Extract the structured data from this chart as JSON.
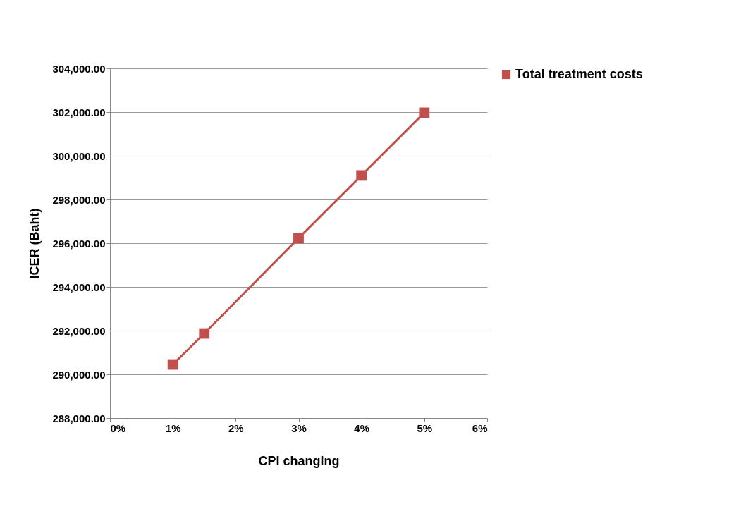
{
  "chart_data": {
    "type": "line",
    "xlabel": "CPI changing",
    "ylabel": "ICER (Baht)",
    "x": [
      1,
      1.5,
      3,
      4,
      5
    ],
    "series": [
      {
        "name": "Total treatment costs",
        "color": "#c0504d",
        "values": [
          290450,
          291870,
          296230,
          299100,
          301970
        ]
      }
    ],
    "xlim": [
      0,
      6
    ],
    "xticks": [
      {
        "value": 0,
        "label": "0%"
      },
      {
        "value": 1,
        "label": "1%"
      },
      {
        "value": 2,
        "label": "2%"
      },
      {
        "value": 3,
        "label": "3%"
      },
      {
        "value": 4,
        "label": "4%"
      },
      {
        "value": 5,
        "label": "5%"
      },
      {
        "value": 6,
        "label": "6%"
      }
    ],
    "ylim": [
      288000,
      304000
    ],
    "yticks": [
      {
        "value": 288000,
        "label": "288,000.00"
      },
      {
        "value": 290000,
        "label": "290,000.00"
      },
      {
        "value": 292000,
        "label": "292,000.00"
      },
      {
        "value": 294000,
        "label": "294,000.00"
      },
      {
        "value": 296000,
        "label": "296,000.00"
      },
      {
        "value": 298000,
        "label": "298,000.00"
      },
      {
        "value": 300000,
        "label": "300,000.00"
      },
      {
        "value": 302000,
        "label": "302,000.00"
      },
      {
        "value": 304000,
        "label": "304,000.00"
      }
    ],
    "grid": "y",
    "legend": "right",
    "marker": "square",
    "line_style": "solid"
  }
}
